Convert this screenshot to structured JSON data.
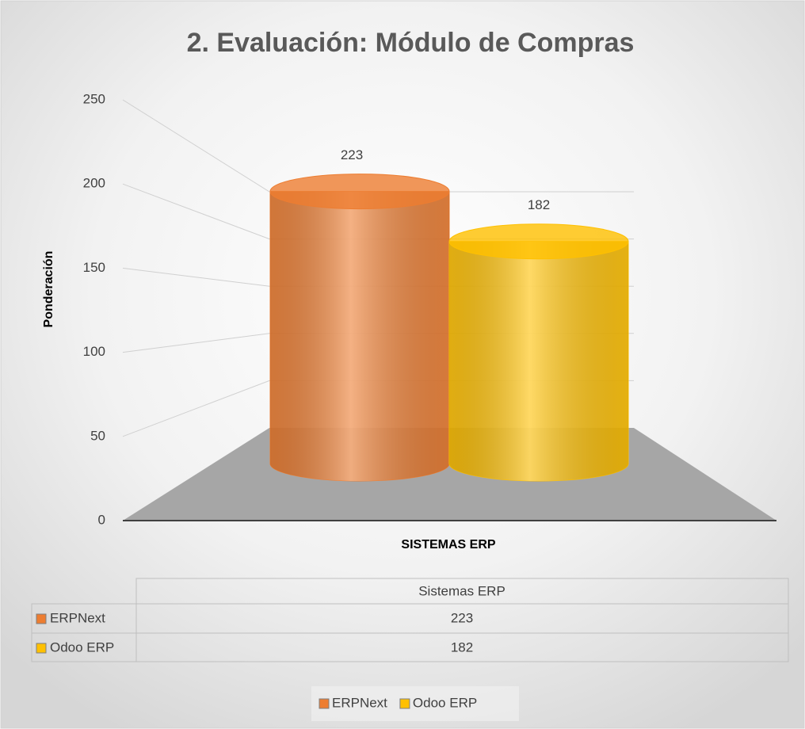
{
  "chart_data": {
    "type": "bar",
    "title": "2. Evaluación: Módulo de Compras",
    "y_label": "Ponderación",
    "x_label": "SISTEMAS ERP",
    "categories": [
      "Sistemas ERP"
    ],
    "series": [
      {
        "name": "ERPNext",
        "color": "#ed7d31",
        "values": [
          223
        ]
      },
      {
        "name": "Odoo ERP",
        "color": "#ffc000",
        "values": [
          182
        ]
      }
    ],
    "ylim": [
      0,
      250
    ],
    "yticks": [
      0,
      50,
      100,
      150,
      200,
      250
    ],
    "grid": true,
    "legend": "bottom",
    "data_table": true
  }
}
